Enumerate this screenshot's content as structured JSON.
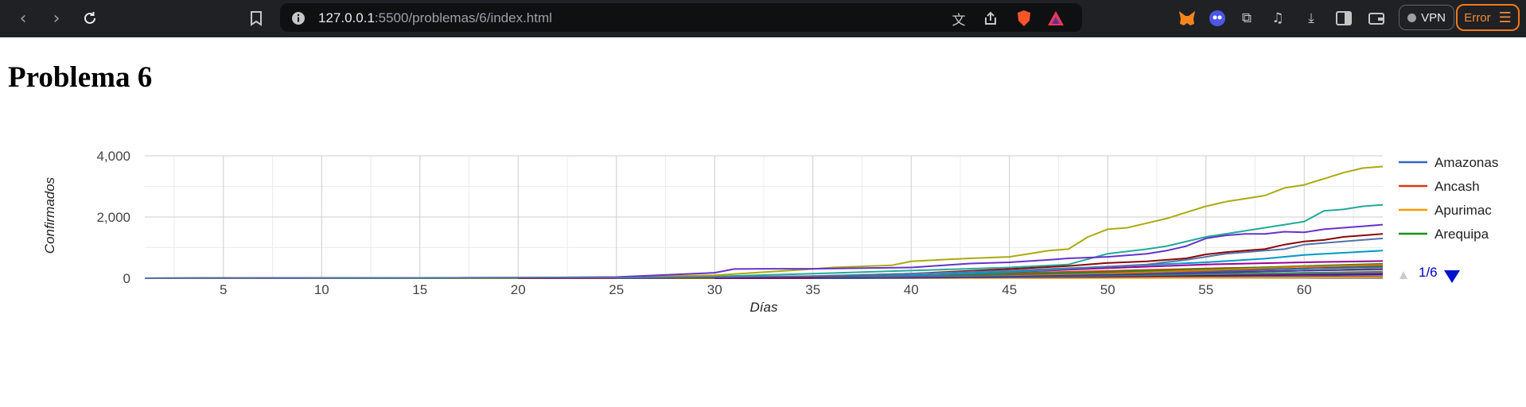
{
  "browser": {
    "url_host": "127.0.0.1",
    "url_path": ":5500/problemas/6/index.html",
    "vpn_label": "VPN",
    "error_label": "Error",
    "icons": [
      "back-icon",
      "forward-icon",
      "reload-icon",
      "bookmark-icon",
      "site-info-icon",
      "translate-icon",
      "share-icon",
      "brave-shields-icon",
      "brave-rewards-icon",
      "metamask-icon",
      "wallet-ext-icon",
      "extensions-icon",
      "media-icon",
      "downloads-icon",
      "sidebar-icon",
      "wallet-icon",
      "menu-icon"
    ]
  },
  "page": {
    "title": "Problema 6"
  },
  "legend": {
    "pager": "1/6"
  },
  "chart_data": {
    "type": "line",
    "xlabel": "Días",
    "ylabel": "Confirmados",
    "xlim": [
      1,
      64
    ],
    "ylim": [
      0,
      4000
    ],
    "y_ticks": [
      0,
      2000,
      4000
    ],
    "y_tick_labels": [
      "0",
      "2,000",
      "4,000"
    ],
    "x_ticks": [
      5,
      10,
      15,
      20,
      25,
      30,
      35,
      40,
      45,
      50,
      55,
      60
    ],
    "grid": true,
    "legend_position": "right",
    "colors": [
      "#3366cc",
      "#dc3912",
      "#ff9900",
      "#109618",
      "#990099",
      "#0099c6",
      "#dd4477",
      "#66aa00",
      "#b82e2e",
      "#316395",
      "#994499",
      "#22aa99",
      "#aaaa11",
      "#6633cc",
      "#e67300",
      "#8b0707",
      "#651067",
      "#329262",
      "#5574a6",
      "#3b3eac",
      "#b77322",
      "#16d620",
      "#b91383",
      "#f4359e",
      "#9c5935"
    ],
    "series": [
      {
        "name": "Amazonas",
        "x": [
          10,
          20,
          30,
          35,
          40,
          45,
          50,
          55,
          60,
          64
        ],
        "y": [
          0,
          0,
          2,
          5,
          10,
          15,
          25,
          40,
          60,
          70
        ]
      },
      {
        "name": "Ancash",
        "x": [
          1,
          3,
          5,
          10,
          15,
          20,
          25,
          30,
          35,
          40,
          45,
          50,
          55,
          60,
          64
        ],
        "y": [
          0,
          8,
          10,
          12,
          14,
          15,
          18,
          25,
          40,
          80,
          160,
          240,
          320,
          380,
          420
        ]
      },
      {
        "name": "Apurimac",
        "x": [
          10,
          20,
          30,
          35,
          40,
          45,
          50,
          55,
          60,
          64
        ],
        "y": [
          0,
          0,
          1,
          2,
          3,
          5,
          8,
          12,
          20,
          30
        ]
      },
      {
        "name": "Arequipa",
        "x": [
          10,
          15,
          20,
          25,
          30,
          35,
          40,
          45,
          50,
          55,
          60,
          64
        ],
        "y": [
          0,
          2,
          5,
          10,
          20,
          40,
          80,
          130,
          200,
          290,
          400,
          470
        ]
      },
      {
        "x": [
          20,
          30,
          35,
          40,
          45,
          50,
          55,
          60,
          64
        ],
        "y": [
          0,
          10,
          30,
          90,
          200,
          330,
          450,
          520,
          560
        ]
      },
      {
        "x": [
          25,
          30,
          35,
          40,
          45,
          50,
          55,
          58,
          60,
          62,
          64
        ],
        "y": [
          0,
          8,
          30,
          90,
          200,
          380,
          520,
          640,
          760,
          830,
          900
        ]
      },
      {
        "x": [
          30,
          35,
          40,
          45,
          50,
          55,
          60,
          64
        ],
        "y": [
          0,
          10,
          50,
          100,
          150,
          200,
          250,
          280
        ]
      },
      {
        "x": [
          28,
          35,
          40,
          45,
          50,
          55,
          60,
          64
        ],
        "y": [
          0,
          15,
          40,
          90,
          160,
          240,
          320,
          360
        ]
      },
      {
        "x": [
          30,
          35,
          40,
          45,
          50,
          55,
          60,
          64
        ],
        "y": [
          0,
          5,
          20,
          50,
          110,
          170,
          250,
          300
        ]
      },
      {
        "x": [
          30,
          35,
          40,
          45,
          50,
          55,
          60,
          64
        ],
        "y": [
          0,
          10,
          40,
          90,
          160,
          240,
          320,
          380
        ]
      },
      {
        "x": [
          30,
          35,
          40,
          45,
          50,
          55,
          60,
          64
        ],
        "y": [
          0,
          8,
          20,
          40,
          70,
          100,
          140,
          170
        ]
      },
      {
        "x": [
          1,
          10,
          20,
          25,
          30,
          35,
          40,
          45,
          48,
          50,
          52,
          53,
          55,
          56,
          58,
          59,
          60,
          61,
          62,
          63,
          64
        ],
        "y": [
          0,
          5,
          15,
          25,
          60,
          150,
          250,
          350,
          450,
          800,
          950,
          1050,
          1350,
          1450,
          1650,
          1750,
          1850,
          2200,
          2250,
          2350,
          2400
        ]
      },
      {
        "x": [
          1,
          10,
          20,
          25,
          30,
          35,
          36,
          38,
          39,
          40,
          42,
          43,
          45,
          46,
          47,
          48,
          49,
          50,
          51,
          52,
          53,
          54,
          55,
          56,
          57,
          58,
          59,
          60,
          61,
          62,
          63,
          64
        ],
        "y": [
          0,
          5,
          15,
          40,
          100,
          300,
          350,
          400,
          420,
          550,
          620,
          650,
          700,
          800,
          900,
          950,
          1350,
          1600,
          1650,
          1800,
          1950,
          2150,
          2350,
          2500,
          2600,
          2700,
          2950,
          3050,
          3250,
          3450,
          3600,
          3650
        ]
      },
      {
        "x": [
          1,
          10,
          20,
          25,
          30,
          31,
          33,
          35,
          40,
          43,
          45,
          47,
          48,
          50,
          52,
          53,
          54,
          55,
          56,
          57,
          58,
          59,
          60,
          61,
          62,
          63,
          64
        ],
        "y": [
          0,
          5,
          15,
          40,
          180,
          300,
          310,
          310,
          350,
          480,
          520,
          600,
          650,
          700,
          800,
          900,
          1050,
          1300,
          1400,
          1450,
          1450,
          1520,
          1500,
          1600,
          1650,
          1700,
          1750
        ]
      },
      {
        "x": [
          30,
          35,
          40,
          45,
          50,
          55,
          60,
          64
        ],
        "y": [
          0,
          5,
          25,
          70,
          150,
          260,
          380,
          440
        ]
      },
      {
        "x": [
          20,
          30,
          35,
          40,
          45,
          48,
          50,
          52,
          54,
          55,
          56,
          57,
          58,
          59,
          60,
          61,
          62,
          63,
          64
        ],
        "y": [
          0,
          20,
          60,
          150,
          300,
          400,
          500,
          550,
          650,
          780,
          850,
          900,
          950,
          1100,
          1200,
          1250,
          1350,
          1400,
          1450
        ]
      },
      {
        "x": [
          30,
          35,
          40,
          45,
          50,
          55,
          60,
          64
        ],
        "y": [
          0,
          5,
          15,
          30,
          50,
          80,
          110,
          130
        ]
      },
      {
        "x": [
          35,
          40,
          45,
          50,
          55,
          60,
          64
        ],
        "y": [
          0,
          10,
          40,
          80,
          130,
          180,
          210
        ]
      },
      {
        "x": [
          1,
          5,
          8,
          10,
          15,
          20,
          25,
          30,
          35,
          40,
          45,
          50,
          52,
          54,
          55,
          56,
          58,
          59,
          60,
          62,
          64
        ],
        "y": [
          0,
          5,
          10,
          10,
          12,
          15,
          20,
          40,
          70,
          150,
          250,
          380,
          450,
          600,
          700,
          800,
          900,
          950,
          1100,
          1200,
          1300
        ]
      },
      {
        "x": [
          35,
          40,
          45,
          50,
          55,
          60,
          64
        ],
        "y": [
          0,
          15,
          50,
          110,
          180,
          250,
          300
        ]
      }
    ]
  }
}
